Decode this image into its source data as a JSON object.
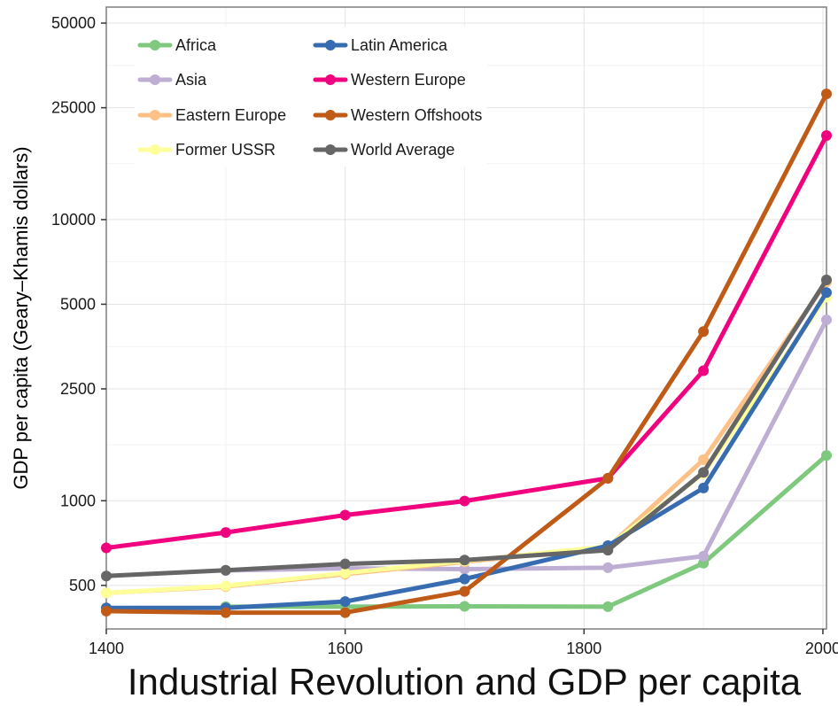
{
  "chart_data": {
    "type": "line",
    "title": "Industrial Revolution and GDP per capita",
    "xlabel": "",
    "ylabel": "GDP per capita (Geary–Khamis dollars)",
    "x_ticks": [
      1400,
      1600,
      1800,
      2000
    ],
    "y_ticks": [
      500,
      1000,
      2500,
      5000,
      10000,
      25000,
      50000
    ],
    "y_scale": "log",
    "xlim": [
      1400,
      2003
    ],
    "ylim": [
      350,
      57000
    ],
    "grid": true,
    "legend_position": "top-left",
    "series": [
      {
        "name": "Africa",
        "color": "#7fc97f",
        "x": [
          1500,
          1600,
          1700,
          1820,
          1900,
          2003
        ],
        "y": [
          420,
          420,
          421,
          420,
          600,
          1450
        ]
      },
      {
        "name": "Asia",
        "color": "#beaed4",
        "x": [
          1500,
          1600,
          1700,
          1820,
          1900,
          2003
        ],
        "y": [
          565,
          575,
          571,
          578,
          635,
          4400
        ]
      },
      {
        "name": "Eastern Europe",
        "color": "#fdc086",
        "x": [
          1400,
          1500,
          1600,
          1700,
          1820,
          1900,
          2003
        ],
        "y": [
          470,
          495,
          548,
          606,
          683,
          1400,
          6000
        ]
      },
      {
        "name": "Former USSR",
        "color": "#ffff99",
        "x": [
          1400,
          1500,
          1600,
          1700,
          1820,
          1900,
          2003
        ],
        "y": [
          470,
          498,
          553,
          611,
          688,
          1250,
          5300
        ]
      },
      {
        "name": "Latin America",
        "color": "#386cb0",
        "x": [
          1400,
          1500,
          1600,
          1700,
          1820,
          1900,
          2003
        ],
        "y": [
          416,
          416,
          438,
          527,
          692,
          1110,
          5500
        ]
      },
      {
        "name": "Western Europe",
        "color": "#f0027f",
        "x": [
          1400,
          1500,
          1600,
          1700,
          1820,
          1900,
          2003
        ],
        "y": [
          680,
          771,
          889,
          998,
          1202,
          2900,
          19900
        ]
      },
      {
        "name": "Western Offshoots",
        "color": "#bf5b17",
        "x": [
          1400,
          1500,
          1600,
          1700,
          1820,
          1900,
          2003
        ],
        "y": [
          405,
          400,
          400,
          476,
          1202,
          4000,
          28000
        ]
      },
      {
        "name": "World Average",
        "color": "#666666",
        "x": [
          1400,
          1500,
          1600,
          1700,
          1820,
          1900,
          2003
        ],
        "y": [
          540,
          566,
          596,
          615,
          667,
          1262,
          6100
        ]
      }
    ]
  }
}
